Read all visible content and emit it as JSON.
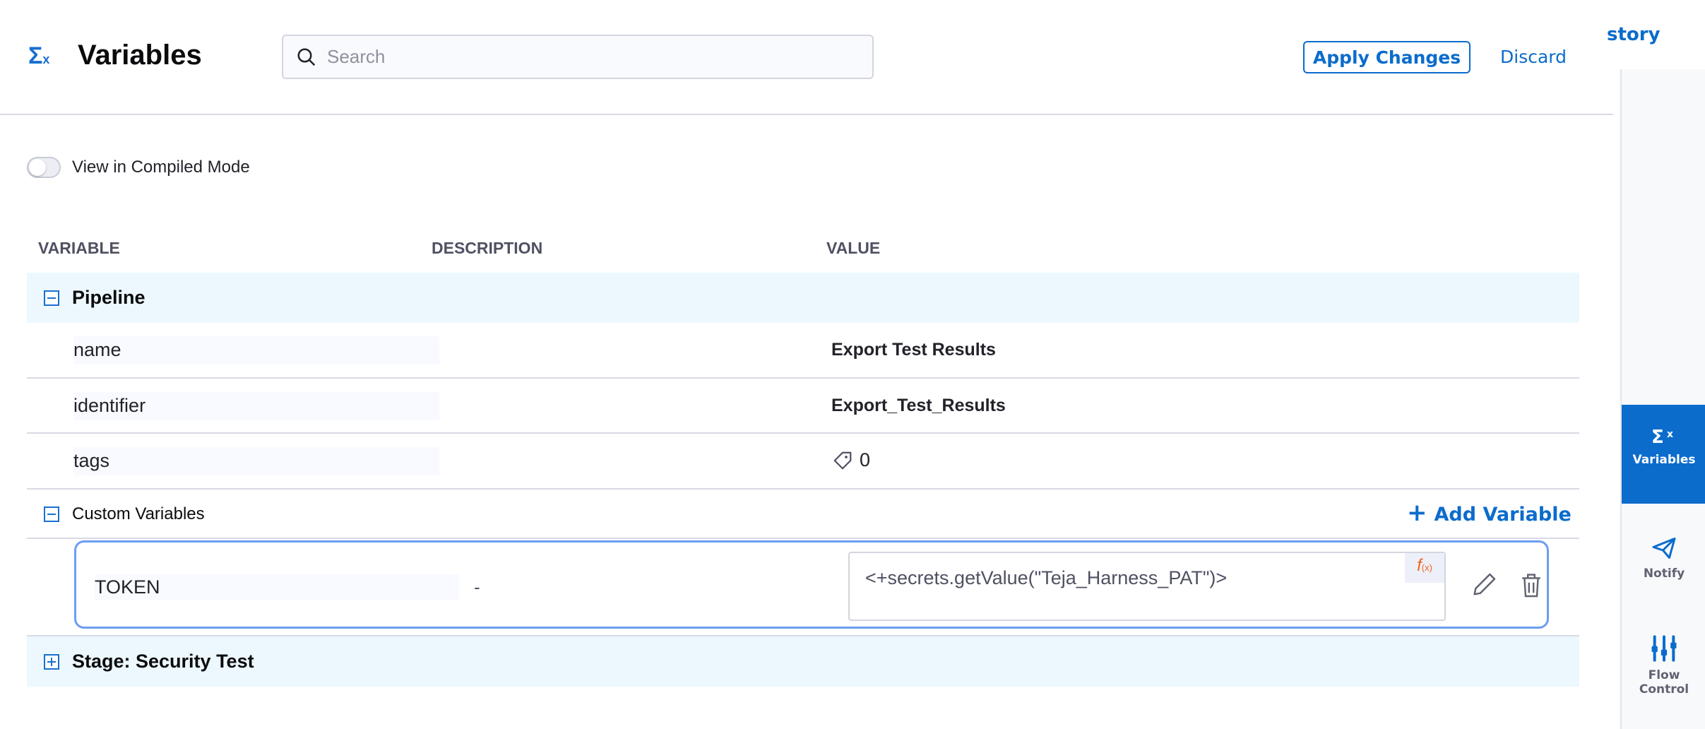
{
  "header": {
    "title": "Variables",
    "title_icon": "sigma-x-icon",
    "search_placeholder": "Search",
    "apply_label": "Apply Changes",
    "discard_label": "Discard",
    "history_label": "story"
  },
  "toggle": {
    "label": "View in Compiled Mode",
    "on": false
  },
  "columns": [
    "VARIABLE",
    "DESCRIPTION",
    "VALUE"
  ],
  "pipeline": {
    "label": "Pipeline",
    "expanded": true,
    "rows": [
      {
        "name": "name",
        "value": "Export Test Results"
      },
      {
        "name": "identifier",
        "value": "Export_Test_Results"
      },
      {
        "name": "tags",
        "value": "0"
      }
    ]
  },
  "custom": {
    "label": "Custom Variables",
    "add_label": "Add Variable",
    "items": [
      {
        "name": "TOKEN",
        "description": "-",
        "value": "<+secrets.getValue(\"Teja_Harness_PAT\")>",
        "fx": "f",
        "fx_sub": "(x)"
      }
    ]
  },
  "stage": {
    "label": "Stage: Security Test",
    "expanded": false
  },
  "right_sidebar": {
    "items": [
      {
        "label": "Variables",
        "icon": "sigma-x-icon",
        "active": true
      },
      {
        "label": "Notify",
        "icon": "paper-plane-icon"
      },
      {
        "label": "Flow Control",
        "icon": "sliders-icon"
      }
    ]
  },
  "colors": {
    "accent": "#0b6ccc",
    "group_bg": "#ecf8fe",
    "fx": "#f0631c",
    "focus_border": "#6c9df2"
  }
}
